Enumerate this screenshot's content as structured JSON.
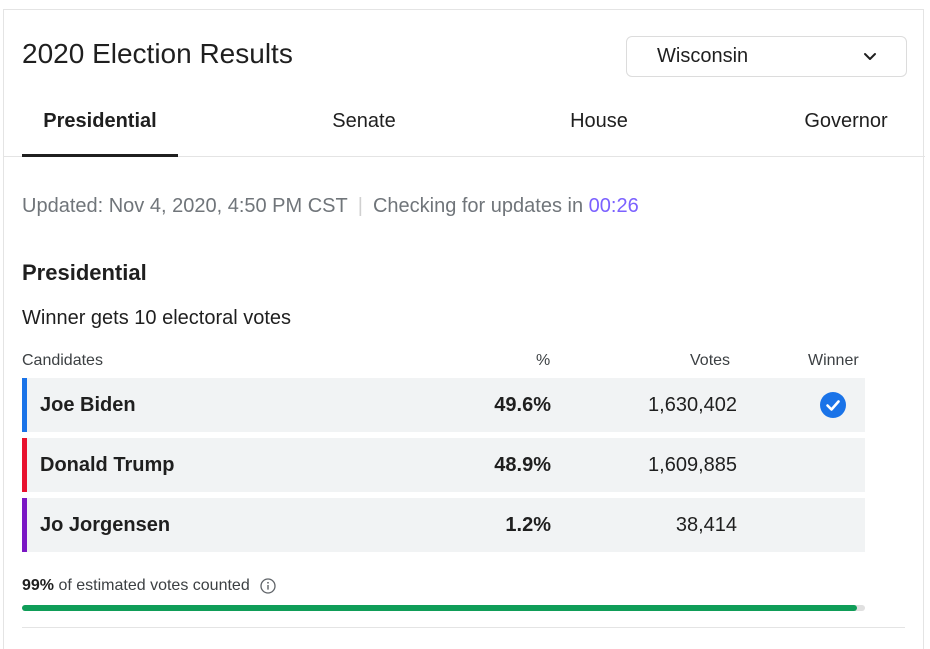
{
  "header": {
    "title": "2020 Election Results",
    "state_select": {
      "selected": "Wisconsin",
      "icon": "chevron-down-icon"
    }
  },
  "tabs": [
    {
      "label": "Presidential",
      "active": true
    },
    {
      "label": "Senate",
      "active": false
    },
    {
      "label": "House",
      "active": false
    },
    {
      "label": "Governor",
      "active": false
    }
  ],
  "status": {
    "updated": "Updated: Nov 4, 2020, 4:50 PM CST",
    "separator": "|",
    "checking": "Checking for updates in",
    "countdown": "00:26"
  },
  "race": {
    "title": "Presidential",
    "subtitle": "Winner gets 10 electoral votes",
    "columns": {
      "candidates": "Candidates",
      "percent": "%",
      "votes": "Votes",
      "winner": "Winner"
    },
    "candidates": [
      {
        "name": "Joe Biden",
        "percent": "49.6%",
        "votes": "1,630,402",
        "color": "#1a73e8",
        "winner": true
      },
      {
        "name": "Donald Trump",
        "percent": "48.9%",
        "votes": "1,609,885",
        "color": "#e8112d",
        "winner": false
      },
      {
        "name": "Jo Jorgensen",
        "percent": "1.2%",
        "votes": "38,414",
        "color": "#7a17c4",
        "winner": false
      }
    ]
  },
  "counted": {
    "percent": "99%",
    "text": "of estimated votes counted",
    "progress_fraction": 0.99,
    "progress_color": "#0f9d58",
    "icon": "info-icon"
  },
  "colors": {
    "accent": "#7b61ff",
    "winner_check": "#1a73e8"
  }
}
